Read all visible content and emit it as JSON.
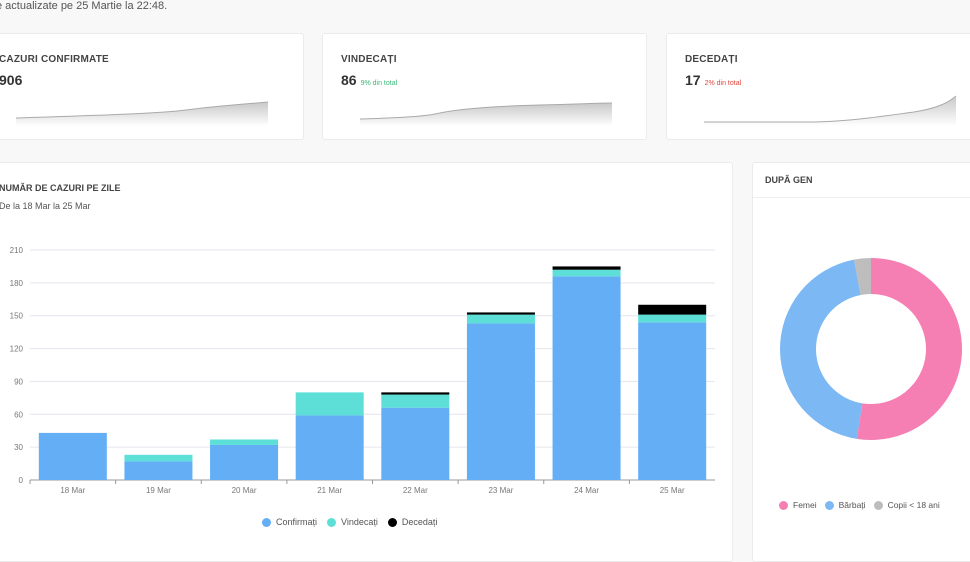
{
  "updated_text": "e actualizate pe 25 Martie la 22:48.",
  "cards": [
    {
      "title": "CAZURI CONFIRMATE",
      "value": "906",
      "sub": "",
      "sub_color": ""
    },
    {
      "title": "VINDECAȚI",
      "value": "86",
      "sub": "9% din total",
      "sub_color": "#3cb878"
    },
    {
      "title": "DECEDAȚI",
      "value": "17",
      "sub": "2% din total",
      "sub_color": "#e0443a"
    }
  ],
  "daily": {
    "title": "NUMĂR DE CAZURI PE ZILE",
    "subtitle": "De la 18 Mar la 25 Mar"
  },
  "gender": {
    "title": "DUPĂ GEN"
  },
  "chart_data": [
    {
      "type": "bar",
      "stacked": true,
      "categories": [
        "18 Mar",
        "19 Mar",
        "20 Mar",
        "21 Mar",
        "22 Mar",
        "23 Mar",
        "24 Mar",
        "25 Mar"
      ],
      "series": [
        {
          "name": "Confirmați",
          "color": "#64aef5",
          "values": [
            43,
            17,
            32,
            59,
            66,
            143,
            186,
            144
          ]
        },
        {
          "name": "Vindecați",
          "color": "#5ddfd8",
          "values": [
            0,
            6,
            5,
            21,
            12,
            8,
            6,
            7
          ]
        },
        {
          "name": "Decedați",
          "color": "#000000",
          "values": [
            0,
            0,
            0,
            0,
            2,
            2,
            3,
            9
          ]
        }
      ],
      "yticks": [
        "0",
        "30",
        "60",
        "90",
        "120",
        "150",
        "180",
        "210"
      ],
      "ylim": [
        0,
        210
      ],
      "grid": true,
      "legend": "bottom"
    },
    {
      "type": "pie",
      "donut": true,
      "labels": [
        "Femei",
        "Bărbați",
        "Copii < 18 ani"
      ],
      "values": [
        52.5,
        44.5,
        3
      ],
      "colors": [
        "#f57fb3",
        "#7cb8f4",
        "#bdbdbd"
      ],
      "legend": "bottom"
    }
  ]
}
